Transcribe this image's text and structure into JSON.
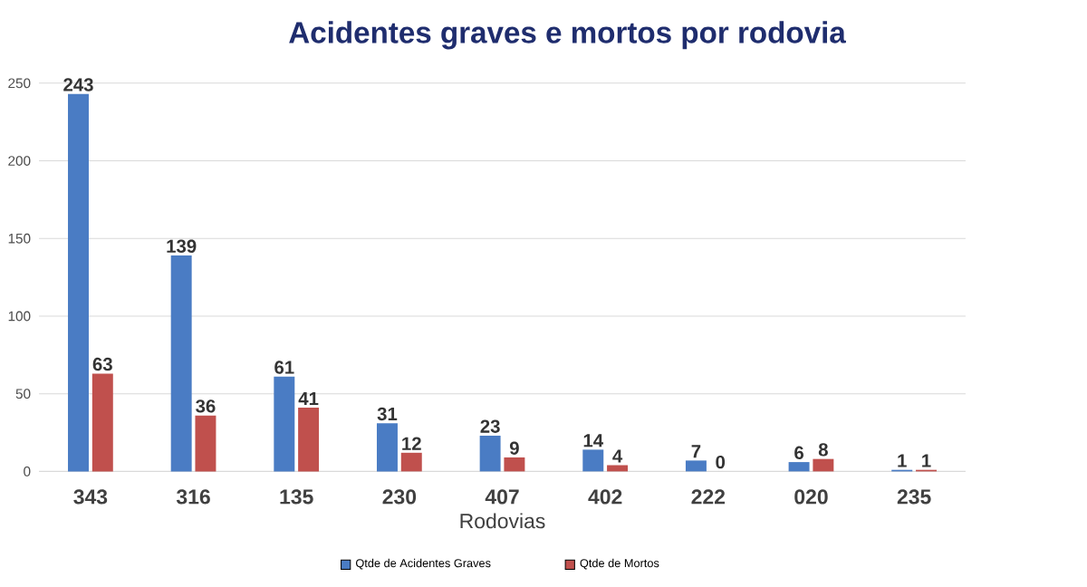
{
  "chart_data": {
    "type": "bar",
    "title": "Acidentes graves e mortos por rodovia",
    "xlabel": "Rodovias",
    "categories": [
      "343",
      "316",
      "135",
      "230",
      "407",
      "402",
      "222",
      "020",
      "235"
    ],
    "series": [
      {
        "name": "Qtde de Acidentes Graves",
        "color": "#4a7cc4",
        "values": [
          243,
          139,
          61,
          31,
          23,
          14,
          7,
          6,
          1
        ]
      },
      {
        "name": "Qtde de Mortos",
        "color": "#c0504d",
        "values": [
          63,
          36,
          41,
          12,
          9,
          4,
          0,
          8,
          1
        ]
      }
    ],
    "ylim": [
      0,
      250
    ],
    "yticks": [
      0,
      50,
      100,
      150,
      200,
      250
    ],
    "grid": "y",
    "legend": "bottom",
    "data_labels": true
  }
}
